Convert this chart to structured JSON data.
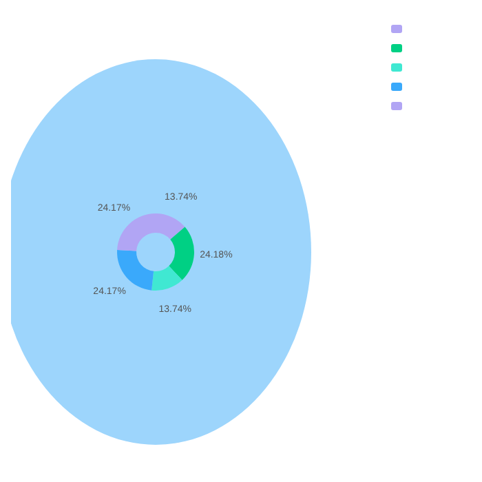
{
  "chart_data": {
    "type": "donut",
    "categories": [
      null,
      null,
      null,
      null,
      null
    ],
    "values": [
      13.74,
      24.18,
      13.74,
      24.17,
      24.17
    ],
    "colors": [
      "#b1a5f4",
      "#00d084",
      "#40e8d2",
      "#3aa9fb",
      "#b1a5f4"
    ],
    "value_labels": [
      "13.74%",
      "24.18%",
      "13.74%",
      "24.17%",
      "24.17%"
    ]
  }
}
